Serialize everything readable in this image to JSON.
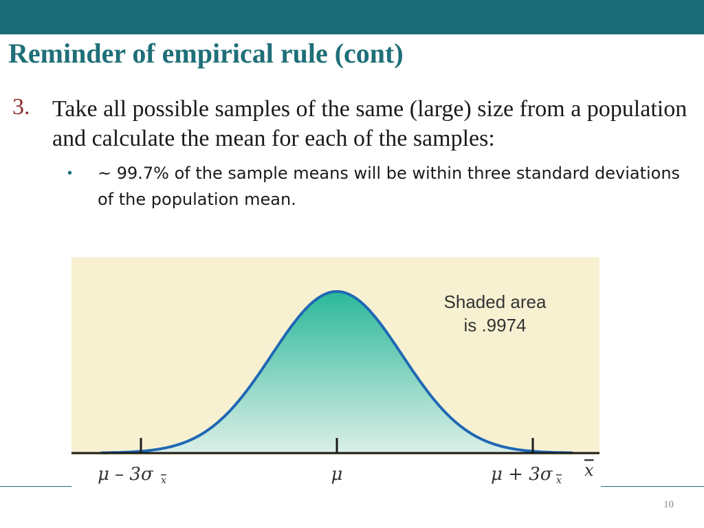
{
  "slide": {
    "title": "Reminder of empirical rule (cont)",
    "item_number": "3.",
    "item_text": "Take all possible samples of the same (large) size from a population and calculate the mean for each of the samples:",
    "bullet_text": "~ 99.7% of the sample means will be within three standard deviations of the population mean.",
    "page_number": "10"
  },
  "colors": {
    "header_bar": "#1b6b78",
    "title": "#1f6f78",
    "chart_background": "#f7f1d2",
    "curve_stroke": "#1f68b4",
    "fill_top": "#2bb89a",
    "fill_bottom": "#dcefe7"
  },
  "chart_data": {
    "type": "area",
    "distribution": "normal",
    "mean": 0,
    "sd": 1,
    "shaded_from": -3,
    "shaded_to": 3,
    "xlim": [
      -3.6,
      3.6
    ],
    "annotation_line1": "Shaded area",
    "annotation_line2": "is .9974",
    "tick_labels": {
      "left": "μ – 3σ",
      "center": "μ",
      "right": "μ + 3σ",
      "subscript": "x",
      "axis": "x"
    }
  }
}
